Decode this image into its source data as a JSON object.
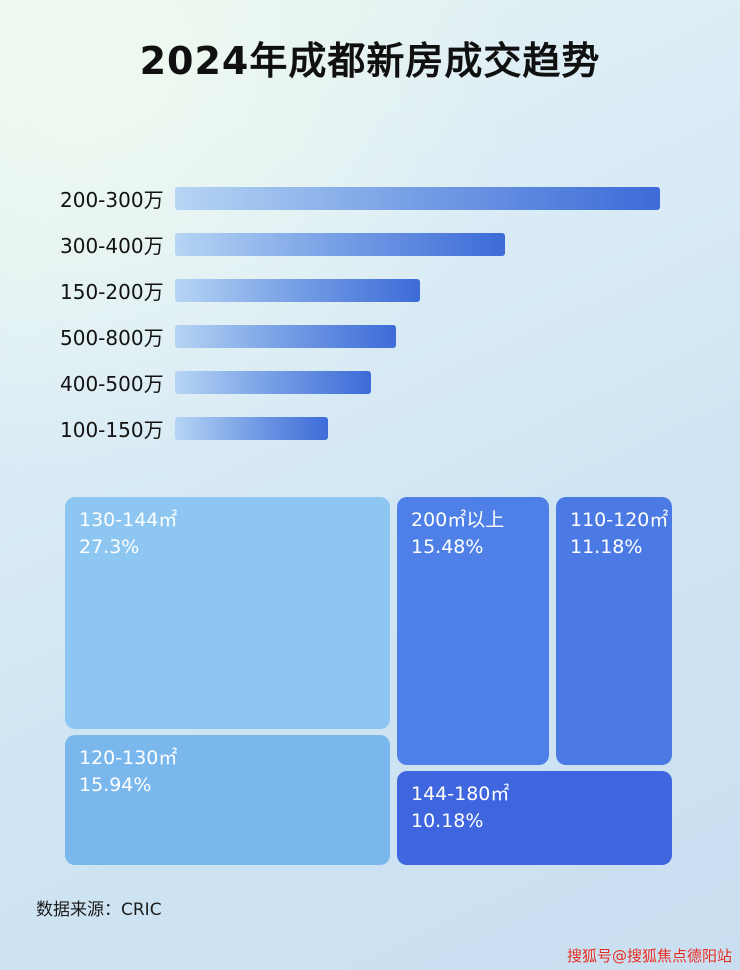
{
  "title": "2024年成都新房成交趋势",
  "bar_chart": {
    "rows": [
      {
        "label": "200-300万",
        "length_pct": 100
      },
      {
        "label": "300-400万",
        "length_pct": 68
      },
      {
        "label": "150-200万",
        "length_pct": 50.5
      },
      {
        "label": "500-800万",
        "length_pct": 45.5
      },
      {
        "label": "400-500万",
        "length_pct": 40.5
      },
      {
        "label": "100-150万",
        "length_pct": 31.5
      }
    ],
    "bar_gradient_start": "#b6d5f4",
    "bar_gradient_end": "#3d6bd8"
  },
  "treemap": {
    "blocks": [
      {
        "label": "130-144㎡",
        "percent": "27.3%",
        "color": "#8cc6f1"
      },
      {
        "label": "120-130㎡",
        "percent": "15.94%",
        "color": "#79b7ec"
      },
      {
        "label": "200㎡以上",
        "percent": "15.48%",
        "color": "#4f80e8"
      },
      {
        "label": "110-120㎡",
        "percent": "11.18%",
        "color": "#4c7ae4"
      },
      {
        "label": "144-180㎡",
        "percent": "10.18%",
        "color": "#3f66de"
      }
    ]
  },
  "source": "数据来源：CRIC",
  "watermark": "搜狐号@搜狐焦点德阳站",
  "chart_data": [
    {
      "type": "bar",
      "orientation": "horizontal",
      "title": "2024年成都新房成交趋势",
      "categories": [
        "200-300万",
        "300-400万",
        "150-200万",
        "500-800万",
        "400-500万",
        "100-150万"
      ],
      "values": [
        100,
        68,
        50.5,
        45.5,
        40.5,
        31.5
      ],
      "value_note": "relative bar length as % of longest bar; no numeric axis or data labels shown in image",
      "xlabel": "",
      "ylabel": "",
      "grid": false,
      "legend": false
    },
    {
      "type": "treemap",
      "items": [
        {
          "label": "130-144㎡",
          "value": 27.3
        },
        {
          "label": "120-130㎡",
          "value": 15.94
        },
        {
          "label": "200㎡以上",
          "value": 15.48
        },
        {
          "label": "110-120㎡",
          "value": 11.18
        },
        {
          "label": "144-180㎡",
          "value": 10.18
        }
      ],
      "value_unit": "%"
    }
  ]
}
